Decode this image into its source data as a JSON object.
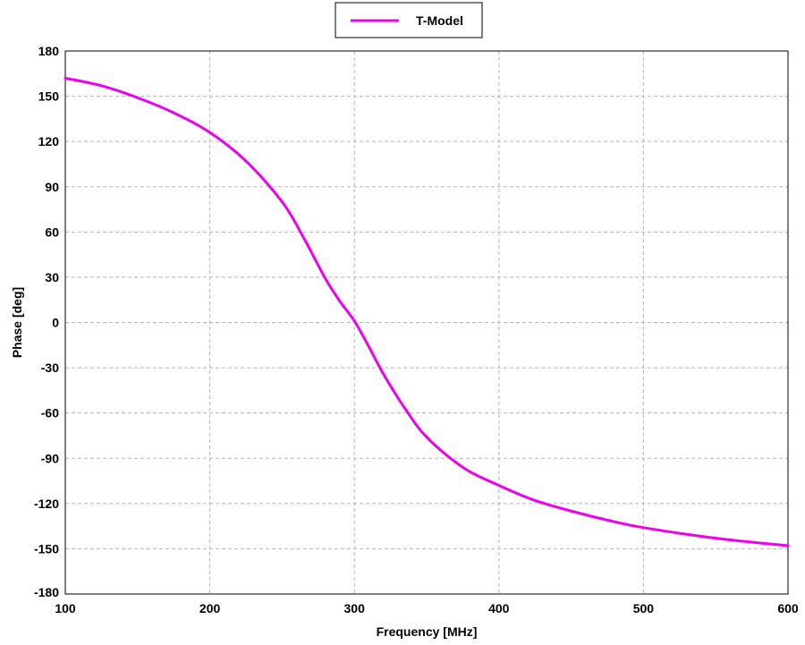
{
  "chart_data": {
    "type": "line",
    "title": "",
    "xlabel": "Frequency [MHz]",
    "ylabel": "Phase [deg]",
    "xlim": [
      100,
      600
    ],
    "ylim": [
      -180,
      180
    ],
    "x_ticks": [
      100,
      200,
      300,
      400,
      500,
      600
    ],
    "y_ticks": [
      180,
      150,
      120,
      90,
      60,
      30,
      0,
      -30,
      -60,
      -90,
      -120,
      -150,
      -180
    ],
    "grid": true,
    "legend": {
      "placement": "top-center",
      "entries": [
        "T-Model"
      ]
    },
    "series": [
      {
        "name": "T-Model",
        "color": "#ee00ee",
        "x": [
          100,
          125,
          150,
          175,
          200,
          225,
          250,
          265,
          280,
          290,
          300,
          310,
          320,
          335,
          350,
          375,
          400,
          425,
          450,
          475,
          500,
          550,
          600
        ],
        "y": [
          162,
          157,
          149,
          139,
          126,
          107,
          80,
          56,
          29,
          14,
          1,
          -16,
          -34,
          -57,
          -76,
          -96,
          -108,
          -118,
          -125,
          -131,
          -136,
          -143,
          -148
        ]
      }
    ]
  }
}
